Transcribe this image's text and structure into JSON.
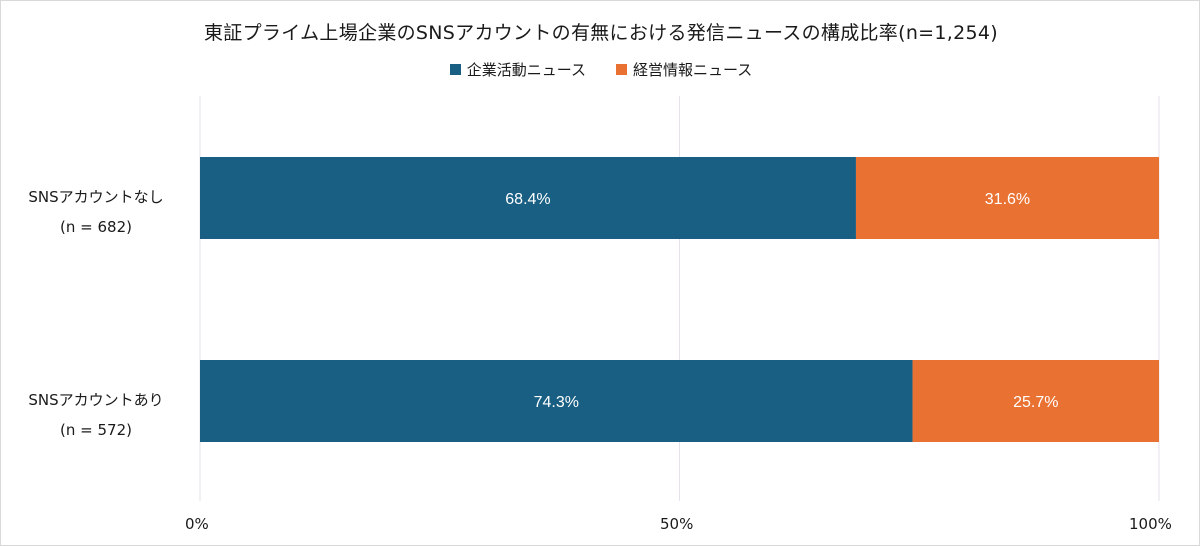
{
  "chart_data": {
    "type": "bar",
    "orientation": "horizontal",
    "stacked": "percent",
    "title": "東証プライム上場企業のSNSアカウントの有無における発信ニュースの構成比率(n=1,254)",
    "categories": [
      {
        "name": "SNSアカウントなし",
        "n_label": "(n = 682)"
      },
      {
        "name": "SNSアカウントあり",
        "n_label": "(n = 572)"
      }
    ],
    "series": [
      {
        "name": "企業活動ニュース",
        "color": "#185f83",
        "values": [
          68.4,
          74.3
        ],
        "labels": [
          "68.4%",
          "74.3%"
        ]
      },
      {
        "name": "経営情報ニュース",
        "color": "#e97132",
        "values": [
          31.6,
          25.7
        ],
        "labels": [
          "31.6%",
          "25.7%"
        ]
      }
    ],
    "x_ticks": [
      "0%",
      "50%",
      "100%"
    ],
    "xlim": [
      0,
      100
    ],
    "legend_position": "top",
    "grid": "vertical"
  }
}
